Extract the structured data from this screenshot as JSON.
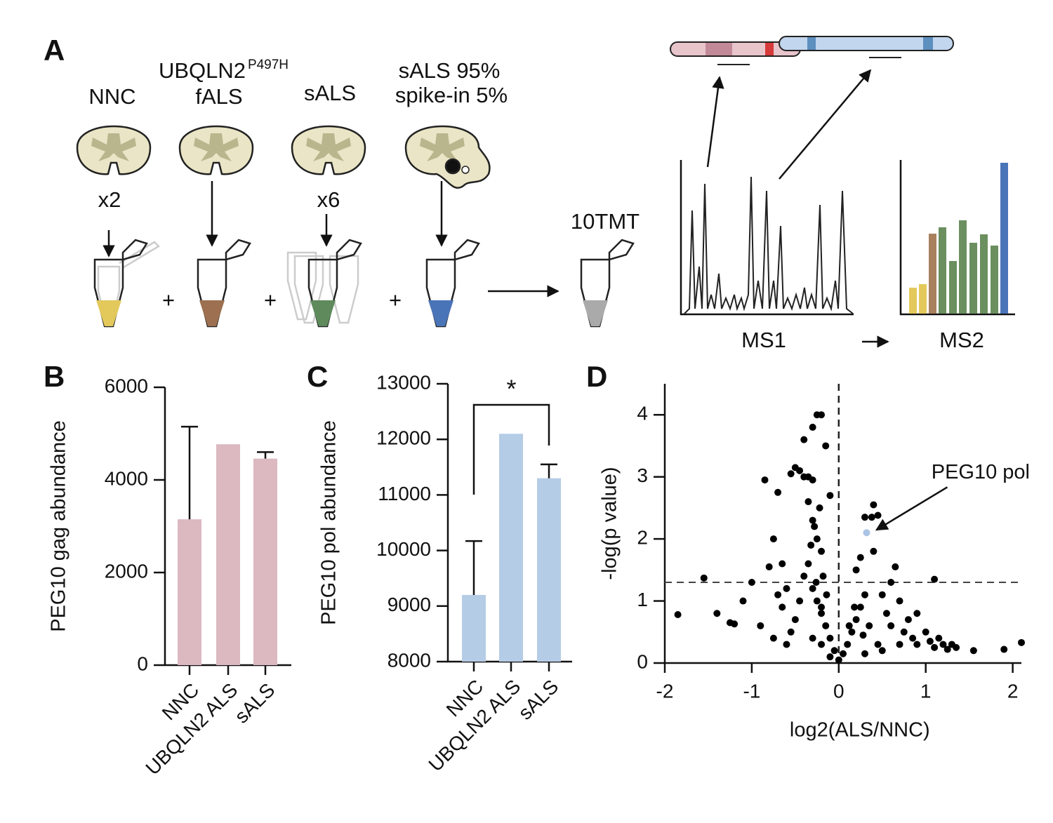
{
  "panel_a": {
    "label": "A",
    "groups": [
      {
        "title": "NNC",
        "count": "x2"
      },
      {
        "title": "UBQLN2",
        "superscript": "P497H",
        "subtitle": "fALS"
      },
      {
        "title": "sALS",
        "count": "x6"
      },
      {
        "title": "sALS 95%",
        "subtitle": "spike-in 5%"
      }
    ],
    "plus": [
      "+",
      "+",
      "+"
    ],
    "pool": "10TMT",
    "ms1": "MS1",
    "ms2": "MS2"
  },
  "chart_data": [
    {
      "label": "B",
      "type": "bar",
      "categories": [
        "NNC",
        "UBQLN2 ALS",
        "sALS"
      ],
      "values": [
        3150,
        4770,
        4460
      ],
      "errors": [
        2000,
        0,
        140
      ],
      "color": "#dcb8c1",
      "ylim": [
        0,
        6000
      ],
      "yticks": [
        0,
        2000,
        4000,
        6000
      ],
      "ylabel": "PEG10 gag abundance"
    },
    {
      "label": "C",
      "type": "bar",
      "categories": [
        "NNC",
        "UBQLN2 ALS",
        "sALS"
      ],
      "values": [
        9200,
        12100,
        11300
      ],
      "errors": [
        970,
        0,
        250
      ],
      "color": "#b5cce6",
      "ylim": [
        8000,
        13000
      ],
      "yticks": [
        8000,
        9000,
        10000,
        11000,
        12000,
        13000
      ],
      "ylabel": "PEG10 pol abundance",
      "annotation": "*"
    },
    {
      "label": "D",
      "type": "scatter",
      "color": "#000000",
      "x": [
        -1.85,
        -1.55,
        -1.4,
        -1.25,
        -1.2,
        -1.1,
        -1.0,
        -0.85,
        -0.8,
        -0.75,
        -0.7,
        -0.7,
        -0.65,
        -0.6,
        -0.55,
        -0.5,
        -0.45,
        -0.4,
        -0.35,
        -0.3,
        -0.25,
        -0.2,
        -0.4,
        -0.3,
        -0.15,
        -0.1,
        -0.35,
        -0.3,
        -0.25,
        -0.2,
        -0.35,
        -0.3,
        -0.25,
        -0.2,
        -0.15,
        -0.1,
        -0.05,
        -0.4,
        -0.45,
        -0.5,
        -0.55,
        -0.6,
        -0.3,
        -0.2,
        -0.1,
        0,
        0.05,
        0.1,
        0.15,
        0.2,
        0.25,
        0.3,
        0.2,
        0.25,
        0.4,
        0.3,
        0.38,
        0.45,
        0.5,
        0.55,
        0.6,
        0.65,
        0.7,
        0.75,
        0.8,
        0.85,
        0.9,
        1.0,
        1.05,
        1.1,
        1.15,
        1.2,
        1.25,
        1.3,
        1.35,
        1.55,
        1.9,
        2.1,
        1.1,
        0.9,
        0.45,
        0.35,
        0.5,
        0.3,
        0.7,
        0.6,
        0.4,
        -0.75,
        -0.9,
        -0.65,
        -0.28,
        -0.22,
        -0.18,
        -0.32,
        -0.26,
        -0.2,
        -0.14,
        0.12,
        0.18,
        0.28
      ],
      "y": [
        0.78,
        1.37,
        0.8,
        0.65,
        0.63,
        1.0,
        1.3,
        2.95,
        1.55,
        2.0,
        2.75,
        1.1,
        0.9,
        1.2,
        3.05,
        3.15,
        3.1,
        3.0,
        3.0,
        2.95,
        4.0,
        4.0,
        3.6,
        3.8,
        3.5,
        2.7,
        2.6,
        2.3,
        2.0,
        1.8,
        1.6,
        1.2,
        1.0,
        0.8,
        0.6,
        0.4,
        0.2,
        1.4,
        1.0,
        0.7,
        0.5,
        0.3,
        0.4,
        0.3,
        0.1,
        0.05,
        0.15,
        0.3,
        0.5,
        0.7,
        0.9,
        1.1,
        1.5,
        1.7,
        2.55,
        2.35,
        2.35,
        2.38,
        1.1,
        0.8,
        0.6,
        1.55,
        1.0,
        0.5,
        0.7,
        0.4,
        0.8,
        0.5,
        0.35,
        0.25,
        0.4,
        0.3,
        0.22,
        0.3,
        0.25,
        0.2,
        0.22,
        0.33,
        1.35,
        0.3,
        0.3,
        0.6,
        0.2,
        0.15,
        0.3,
        1.3,
        1.8,
        0.4,
        0.6,
        1.6,
        2.2,
        2.5,
        1.4,
        1.9,
        1.3,
        0.9,
        1.1,
        0.6,
        0.9,
        0.45
      ],
      "highlight_x": 0.32,
      "highlight_y": 2.1,
      "highlight_color": "#aac4e4",
      "annotation": "PEG10 pol",
      "threshold": 1.3,
      "xlim": [
        -2,
        2.1
      ],
      "ylim": [
        0,
        4.5
      ],
      "xticks": [
        -2,
        -1,
        0,
        1,
        2
      ],
      "yticks": [
        0,
        1,
        2,
        3,
        4
      ],
      "xlabel": "log2(ALS/NNC)",
      "ylabel": "-log(p value)"
    }
  ]
}
